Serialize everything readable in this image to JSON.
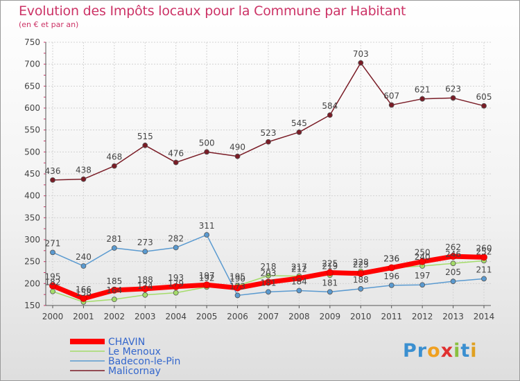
{
  "title": "Evolution des Impôts locaux pour la Commune par Habitant",
  "subtitle": "(en € et par an)",
  "logo": {
    "letters": [
      "P",
      "r",
      "o",
      "x",
      "i",
      "t",
      "i"
    ],
    "colors": [
      "#3a8fd0",
      "#3a8fd0",
      "#f0a020",
      "#e03030",
      "#8ac040",
      "#3a8fd0",
      "#e0a020"
    ]
  },
  "chart_data": {
    "type": "line",
    "x": [
      "2000",
      "2001",
      "2002",
      "2003",
      "2004",
      "2005",
      "2006",
      "2007",
      "2008",
      "2009",
      "2010",
      "2011",
      "2012",
      "2013",
      "2014"
    ],
    "ylim": [
      150,
      750
    ],
    "yticks": [
      150,
      200,
      250,
      300,
      350,
      400,
      450,
      500,
      550,
      600,
      650,
      700,
      750
    ],
    "grid": true,
    "legend_position": "bottom-left",
    "series": [
      {
        "name": "Malicornay",
        "color": "#7a1c26",
        "values": [
          436,
          438,
          468,
          515,
          476,
          500,
          490,
          523,
          545,
          584,
          703,
          607,
          621,
          623,
          605
        ]
      },
      {
        "name": "Badecon-le-Pin",
        "color": "#5a9ad0",
        "values": [
          271,
          240,
          281,
          273,
          282,
          311,
          173,
          181,
          184,
          181,
          188,
          196,
          197,
          205,
          211
        ]
      },
      {
        "name": "Le Menoux",
        "color": "#a4dc6a",
        "values": [
          182,
          158,
          164,
          174,
          179,
          192,
          195,
          218,
          217,
          219,
          228,
          236,
          240,
          246,
          252
        ]
      },
      {
        "name": "CHAVIN",
        "color": "#ff0000",
        "values": [
          195,
          166,
          185,
          188,
          193,
          197,
          190,
          203,
          212,
          225,
          223,
          236,
          250,
          262,
          260
        ]
      }
    ]
  }
}
